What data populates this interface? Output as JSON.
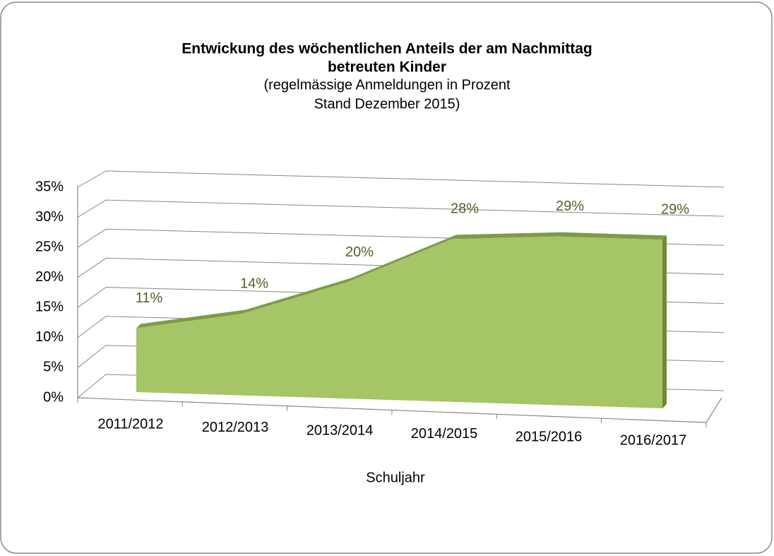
{
  "chart_data": {
    "type": "area",
    "title": [
      "Entwickung des wöchentlichen Anteils der am Nachmittag",
      "betreuten Kinder"
    ],
    "subtitle": [
      "(regelmässige Anmeldungen in Prozent",
      "Stand Dezember 2015)"
    ],
    "x_label": "Schuljahr",
    "categories": [
      "2011/2012",
      "2012/2013",
      "2013/2014",
      "2014/2015",
      "2015/2016",
      "2016/2017"
    ],
    "values": [
      11,
      14,
      20,
      28,
      29,
      29
    ],
    "value_labels": [
      "11%",
      "14%",
      "20%",
      "28%",
      "29%",
      "29%"
    ],
    "color": "#a5c566",
    "ylim": [
      0,
      35
    ],
    "yticks": [
      {
        "value": 0,
        "label": "0%"
      },
      {
        "value": 5,
        "label": "5%"
      },
      {
        "value": 10,
        "label": "10%"
      },
      {
        "value": 15,
        "label": "15%"
      },
      {
        "value": 20,
        "label": "20%"
      },
      {
        "value": 25,
        "label": "25%"
      },
      {
        "value": 30,
        "label": "30%"
      },
      {
        "value": 35,
        "label": "35%"
      }
    ],
    "grid": true
  }
}
